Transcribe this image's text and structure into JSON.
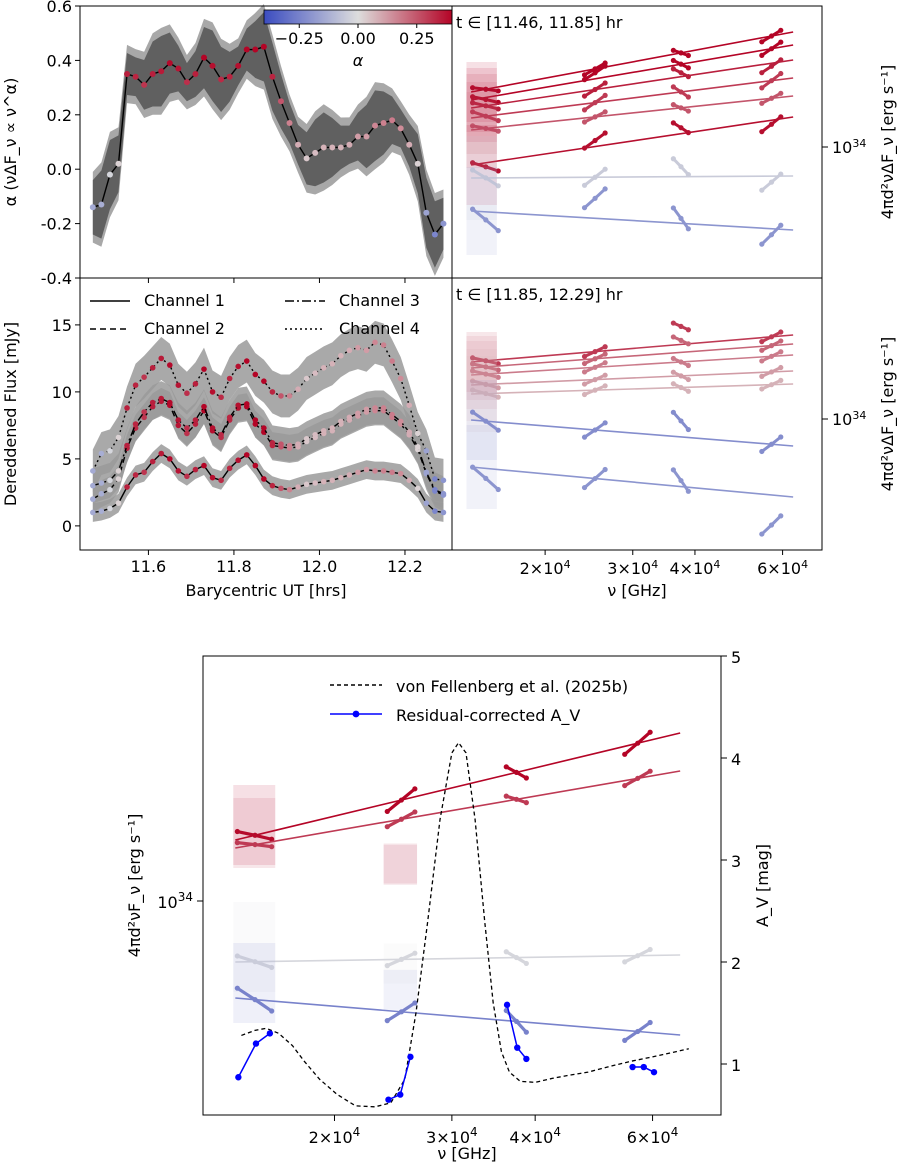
{
  "chart_data": [
    {
      "type": "line",
      "panel": "top-left",
      "ylabel": "α  (νΔF_ν ∝ ν^α)",
      "xlim": [
        11.44,
        12.31
      ],
      "ylim": [
        -0.4,
        0.6
      ],
      "yticks": [
        "-0.4",
        "-0.2",
        "0.0",
        "0.2",
        "0.4",
        "0.6"
      ],
      "x": [
        11.47,
        11.49,
        11.51,
        11.53,
        11.55,
        11.57,
        11.59,
        11.61,
        11.63,
        11.65,
        11.67,
        11.69,
        11.71,
        11.73,
        11.75,
        11.77,
        11.79,
        11.81,
        11.83,
        11.85,
        11.87,
        11.89,
        11.91,
        11.93,
        11.95,
        11.97,
        11.99,
        12.01,
        12.03,
        12.05,
        12.07,
        12.09,
        12.11,
        12.13,
        12.15,
        12.17,
        12.19,
        12.21,
        12.23,
        12.25,
        12.27,
        12.29
      ],
      "values": [
        -0.14,
        -0.13,
        -0.02,
        0.02,
        0.35,
        0.34,
        0.31,
        0.35,
        0.36,
        0.39,
        0.37,
        0.32,
        0.35,
        0.41,
        0.38,
        0.33,
        0.34,
        0.38,
        0.44,
        0.44,
        0.45,
        0.34,
        0.25,
        0.17,
        0.09,
        0.04,
        0.06,
        0.08,
        0.08,
        0.08,
        0.09,
        0.12,
        0.12,
        0.16,
        0.17,
        0.18,
        0.15,
        0.09,
        0.02,
        -0.16,
        -0.24,
        -0.2
      ],
      "colorbar": {
        "label": "α",
        "ticks": [
          "−0.25",
          "0.00",
          "0.25"
        ],
        "range": [
          -0.4,
          0.4
        ]
      }
    },
    {
      "type": "line",
      "panel": "bottom-left",
      "xlabel": "Barycentric UT [hrs]",
      "ylabel": "Dereddened Flux [mJy]",
      "xlim": [
        11.44,
        12.31
      ],
      "ylim": [
        -1.8,
        18.5
      ],
      "xticks": [
        "11.6",
        "11.8",
        "12.0",
        "12.2"
      ],
      "yticks": [
        "0",
        "5",
        "10",
        "15"
      ],
      "legend": [
        "Channel 1",
        "Channel 2",
        "Channel 3",
        "Channel 4"
      ],
      "series": [
        {
          "name": "Channel 1",
          "style": "solid",
          "values": [
            1.0,
            1.1,
            1.3,
            1.7,
            2.9,
            3.8,
            4.0,
            4.8,
            5.4,
            5.0,
            4.1,
            3.7,
            4.2,
            4.5,
            3.6,
            3.4,
            4.3,
            4.9,
            5.3,
            4.5,
            3.5,
            3.0,
            2.8,
            2.7,
            2.9,
            3.1,
            3.2,
            3.3,
            3.4,
            3.6,
            3.8,
            4.0,
            4.2,
            4.1,
            4.1,
            4.0,
            3.9,
            3.4,
            2.8,
            1.7,
            1.1,
            1.0
          ]
        },
        {
          "name": "Channel 2",
          "style": "dashed",
          "values": [
            2.0,
            2.4,
            2.7,
            3.5,
            5.8,
            7.3,
            8.1,
            8.9,
            9.3,
            9.0,
            7.5,
            6.9,
            7.6,
            8.6,
            7.1,
            6.6,
            7.9,
            8.8,
            8.9,
            7.6,
            7.0,
            6.0,
            5.9,
            5.8,
            5.9,
            6.3,
            6.6,
            6.9,
            7.1,
            7.6,
            7.9,
            8.2,
            8.5,
            8.6,
            8.6,
            8.1,
            7.6,
            6.8,
            5.7,
            3.9,
            2.6,
            2.3
          ]
        },
        {
          "name": "Channel 3",
          "style": "dashdot",
          "values": [
            3.0,
            3.2,
            3.4,
            4.1,
            6.0,
            7.6,
            8.5,
            9.2,
            9.5,
            9.2,
            7.9,
            7.3,
            7.9,
            8.9,
            7.3,
            6.8,
            8.1,
            9.0,
            9.1,
            7.9,
            7.3,
            6.2,
            6.1,
            6.0,
            6.1,
            6.5,
            6.8,
            7.1,
            7.3,
            7.8,
            8.1,
            8.4,
            8.7,
            8.8,
            8.8,
            8.3,
            7.8,
            7.0,
            5.9,
            4.0,
            2.7,
            2.4
          ]
        },
        {
          "name": "Channel 4",
          "style": "dotted",
          "values": [
            4.1,
            5.4,
            5.6,
            6.6,
            8.8,
            10.5,
            11.1,
            11.8,
            12.5,
            12.0,
            10.5,
            9.9,
            10.6,
            11.7,
            10.0,
            9.6,
            11.0,
            11.9,
            12.3,
            11.3,
            10.8,
            10.0,
            9.7,
            9.7,
            10.2,
            11.0,
            11.4,
            11.8,
            12.1,
            12.7,
            13.1,
            13.3,
            13.1,
            13.7,
            13.5,
            12.3,
            11.0,
            9.0,
            6.9,
            5.6,
            3.5,
            3.4
          ]
        }
      ]
    },
    {
      "type": "line",
      "panel": "top-right",
      "annotation": "t ∈ [11.46, 11.85] hr",
      "ylabel": "4πd²νΔF_ν [erg s⁻¹]",
      "yscale": "log",
      "ytick": "10^34",
      "bands": [
        "1.6×10^4",
        "2.6×10^4",
        "3.8×10^4",
        "5.7×10^4"
      ]
    },
    {
      "type": "line",
      "panel": "bottom-right",
      "annotation": "t ∈ [11.85, 12.29] hr",
      "xlabel": "ν [GHz]",
      "ylabel": "4πd²νΔF_ν [erg s⁻¹]",
      "xscale": "log",
      "yscale": "log",
      "xticks": [
        "2×10^4",
        "3×10^4",
        "4×10^4",
        "6×10^4"
      ],
      "ytick": "10^34"
    },
    {
      "type": "line",
      "panel": "bottom",
      "xlabel": "ν [GHz]",
      "ylabel": "4πd²νF_ν [erg s⁻¹]",
      "y2label": "A_V [mag]",
      "xscale": "log",
      "yscale": "log",
      "xticks": [
        "2×10^4",
        "3×10^4",
        "4×10^4",
        "6×10^4"
      ],
      "ytick": "10^34",
      "y2lim": [
        0.5,
        5
      ],
      "y2ticks": [
        "1",
        "2",
        "3",
        "4",
        "5"
      ],
      "legend": [
        "von Fellenberg et al. (2025b)",
        "Residual-corrected A_V"
      ],
      "series": [
        {
          "name": "von Fellenberg et al. (2025b)",
          "style": "dashed",
          "color": "#000000",
          "x": [
            14500,
            15200,
            15800,
            16500,
            17300,
            18000,
            19000,
            20200,
            21500,
            23000,
            24300,
            25500,
            26500,
            27600,
            28800,
            30000,
            30700,
            31500,
            32500,
            33600,
            34600,
            35600,
            36600,
            38000,
            40000,
            42500,
            45000,
            48000,
            52000,
            56000,
            60000,
            64000,
            68000
          ],
          "values": [
            1.28,
            1.33,
            1.35,
            1.3,
            1.18,
            1.03,
            0.85,
            0.7,
            0.59,
            0.58,
            0.62,
            0.85,
            1.5,
            2.4,
            3.4,
            4.05,
            4.15,
            4.05,
            3.4,
            2.4,
            1.6,
            1.12,
            0.92,
            0.83,
            0.82,
            0.86,
            0.89,
            0.92,
            0.98,
            1.03,
            1.07,
            1.11,
            1.15
          ]
        },
        {
          "name": "Residual-corrected A_V",
          "style": "solid-marker",
          "color": "#0000ff",
          "x": [
            14350,
            15250,
            16000,
            24100,
            25100,
            26000,
            36300,
            37600,
            38800,
            56000,
            58200,
            60300
          ],
          "values": [
            0.87,
            1.2,
            1.3,
            0.65,
            0.7,
            1.07,
            1.58,
            1.16,
            1.05,
            0.97,
            0.97,
            0.92
          ]
        }
      ]
    }
  ]
}
